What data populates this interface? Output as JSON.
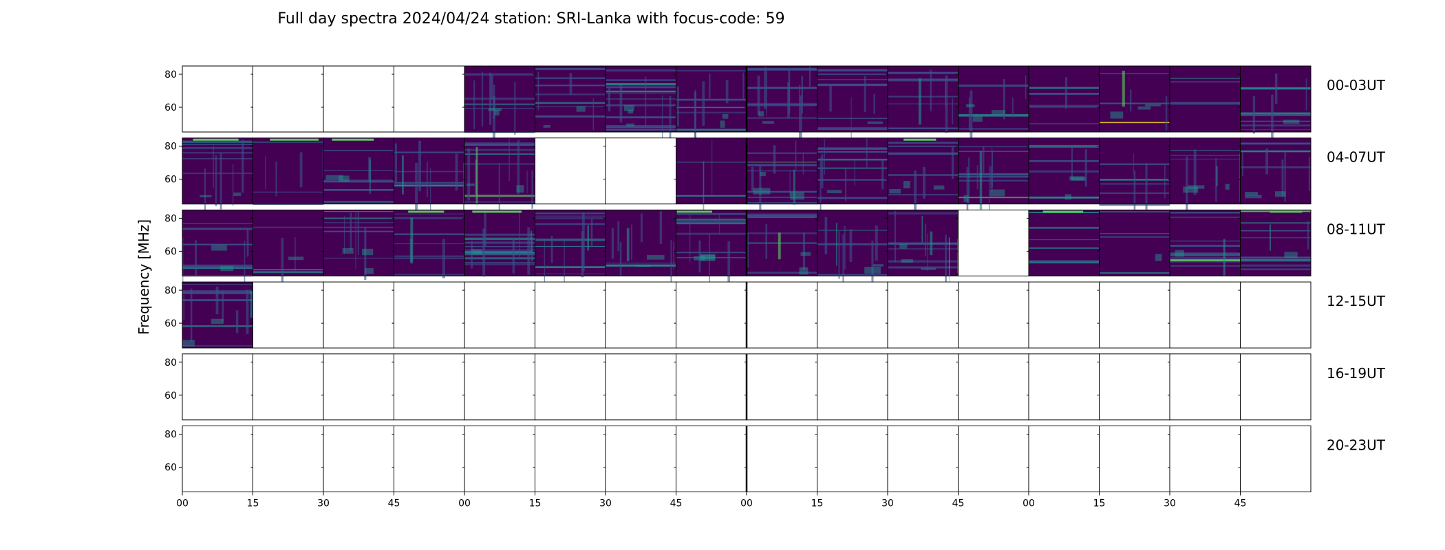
{
  "chart_data": {
    "type": "heatmap",
    "title": "Full day spectra 2024/04/24 station: SRI-Lanka with focus-code: 59",
    "ylabel": "Frequency [MHz]",
    "ylim": [
      45,
      85
    ],
    "y_ticks": [
      "80",
      "60"
    ],
    "y_tick_values": [
      80,
      60
    ],
    "x_tick_labels": [
      "00",
      "15",
      "30",
      "45",
      "00",
      "15",
      "30",
      "45",
      "00",
      "15",
      "30",
      "45",
      "00",
      "15",
      "30",
      "45"
    ],
    "colormap": [
      "#440154",
      "#3b528b",
      "#21918c",
      "#5ec962",
      "#fde725"
    ],
    "rows": [
      {
        "label": "00-03UT",
        "panels_with_data": [
          0,
          0,
          0,
          0,
          1,
          1,
          1,
          1,
          1,
          1,
          1,
          1,
          1,
          1,
          1,
          1
        ]
      },
      {
        "label": "04-07UT",
        "panels_with_data": [
          1,
          1,
          1,
          1,
          1,
          0,
          0,
          1,
          1,
          1,
          1,
          1,
          1,
          1,
          1,
          1
        ]
      },
      {
        "label": "08-11UT",
        "panels_with_data": [
          1,
          1,
          1,
          1,
          1,
          1,
          1,
          1,
          1,
          1,
          1,
          0,
          1,
          1,
          1,
          1
        ]
      },
      {
        "label": "12-15UT",
        "panels_with_data": [
          1,
          0,
          0,
          0,
          0,
          0,
          0,
          0,
          0,
          0,
          0,
          0,
          0,
          0,
          0,
          0
        ]
      },
      {
        "label": "16-19UT",
        "panels_with_data": [
          0,
          0,
          0,
          0,
          0,
          0,
          0,
          0,
          0,
          0,
          0,
          0,
          0,
          0,
          0,
          0
        ]
      },
      {
        "label": "20-23UT",
        "panels_with_data": [
          0,
          0,
          0,
          0,
          0,
          0,
          0,
          0,
          0,
          0,
          0,
          0,
          0,
          0,
          0,
          0
        ]
      }
    ]
  }
}
